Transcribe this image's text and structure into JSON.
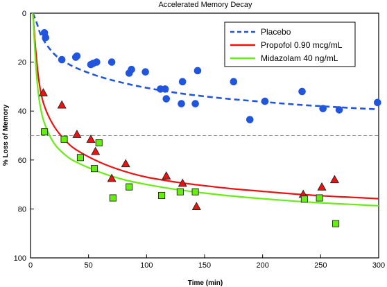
{
  "chart_data": {
    "type": "scatter",
    "title": "Accelerated Memory Decay",
    "xlabel": "Time (min)",
    "ylabel": "% Loss of Memory",
    "xlim": [
      0,
      300
    ],
    "ylim": [
      0,
      100
    ],
    "y_inverted": true,
    "x_ticks": [
      0,
      50,
      100,
      150,
      200,
      250,
      300
    ],
    "y_ticks": [
      0,
      20,
      40,
      60,
      80,
      100
    ],
    "grid": false,
    "legend_position": "top-right",
    "reference_line": {
      "y": 50,
      "style": "dashed",
      "color": "#999999"
    },
    "series": [
      {
        "name": "Placebo",
        "color": "#2255dd",
        "marker": "circle",
        "line_style": "dashed",
        "points": [
          [
            12,
            8
          ],
          [
            13,
            10
          ],
          [
            27,
            19
          ],
          [
            39,
            18
          ],
          [
            40,
            17.5
          ],
          [
            52,
            21
          ],
          [
            54,
            20.5
          ],
          [
            57,
            20
          ],
          [
            70,
            20
          ],
          [
            85,
            24.5
          ],
          [
            87,
            23
          ],
          [
            99,
            24
          ],
          [
            112,
            31
          ],
          [
            116,
            31
          ],
          [
            117,
            35
          ],
          [
            130,
            37
          ],
          [
            131,
            28
          ],
          [
            142,
            37
          ],
          [
            144,
            23.5
          ],
          [
            175,
            28
          ],
          [
            189,
            43.5
          ],
          [
            202,
            36
          ],
          [
            234,
            32
          ],
          [
            252,
            39
          ],
          [
            266,
            39.5
          ],
          [
            299,
            36.5
          ]
        ],
        "curve": [
          [
            2,
            0
          ],
          [
            5,
            3.5
          ],
          [
            10,
            10
          ],
          [
            20,
            16.5
          ],
          [
            30,
            20
          ],
          [
            40,
            22.5
          ],
          [
            60,
            26
          ],
          [
            80,
            28.5
          ],
          [
            100,
            30.5
          ],
          [
            125,
            32.5
          ],
          [
            150,
            34
          ],
          [
            175,
            35.2
          ],
          [
            200,
            36.2
          ],
          [
            225,
            37.2
          ],
          [
            250,
            38
          ],
          [
            275,
            38.7
          ],
          [
            300,
            39.3
          ]
        ]
      },
      {
        "name": "Propofol 0.90 mcg/mL",
        "color": "#ee1111",
        "marker": "triangle",
        "line_style": "solid",
        "points": [
          [
            11,
            32.5
          ],
          [
            27,
            37.5
          ],
          [
            40,
            49.5
          ],
          [
            52,
            51.5
          ],
          [
            56,
            56.5
          ],
          [
            70,
            67.5
          ],
          [
            82,
            61.5
          ],
          [
            117,
            66.5
          ],
          [
            131,
            69.5
          ],
          [
            143,
            79
          ],
          [
            235,
            74
          ],
          [
            251,
            71
          ],
          [
            262,
            68
          ]
        ],
        "curve": [
          [
            2,
            0
          ],
          [
            5,
            18
          ],
          [
            8,
            30
          ],
          [
            12,
            38
          ],
          [
            20,
            46
          ],
          [
            30,
            52
          ],
          [
            40,
            56
          ],
          [
            60,
            61
          ],
          [
            80,
            64.5
          ],
          [
            100,
            67
          ],
          [
            125,
            69
          ],
          [
            150,
            70.5
          ],
          [
            175,
            71.8
          ],
          [
            200,
            72.8
          ],
          [
            225,
            73.8
          ],
          [
            250,
            74.6
          ],
          [
            275,
            75.2
          ],
          [
            300,
            75.8
          ]
        ]
      },
      {
        "name": "Midazolam 40 ng/mL",
        "color": "#66ee11",
        "marker": "square",
        "line_style": "solid",
        "points": [
          [
            12,
            48.5
          ],
          [
            29,
            51.5
          ],
          [
            43,
            59
          ],
          [
            55,
            63.5
          ],
          [
            59,
            53
          ],
          [
            71,
            75.5
          ],
          [
            85,
            71
          ],
          [
            113,
            74.5
          ],
          [
            129,
            73
          ],
          [
            142,
            73
          ],
          [
            236,
            76
          ],
          [
            249,
            75.5
          ],
          [
            263,
            86
          ]
        ],
        "curve": [
          [
            2,
            0
          ],
          [
            5,
            24
          ],
          [
            8,
            37
          ],
          [
            12,
            45
          ],
          [
            20,
            53
          ],
          [
            30,
            58
          ],
          [
            40,
            61
          ],
          [
            60,
            65
          ],
          [
            80,
            68
          ],
          [
            100,
            70
          ],
          [
            125,
            72
          ],
          [
            150,
            73.5
          ],
          [
            175,
            74.8
          ],
          [
            200,
            75.8
          ],
          [
            225,
            76.7
          ],
          [
            250,
            77.5
          ],
          [
            275,
            78.1
          ],
          [
            300,
            78.7
          ]
        ]
      }
    ]
  }
}
